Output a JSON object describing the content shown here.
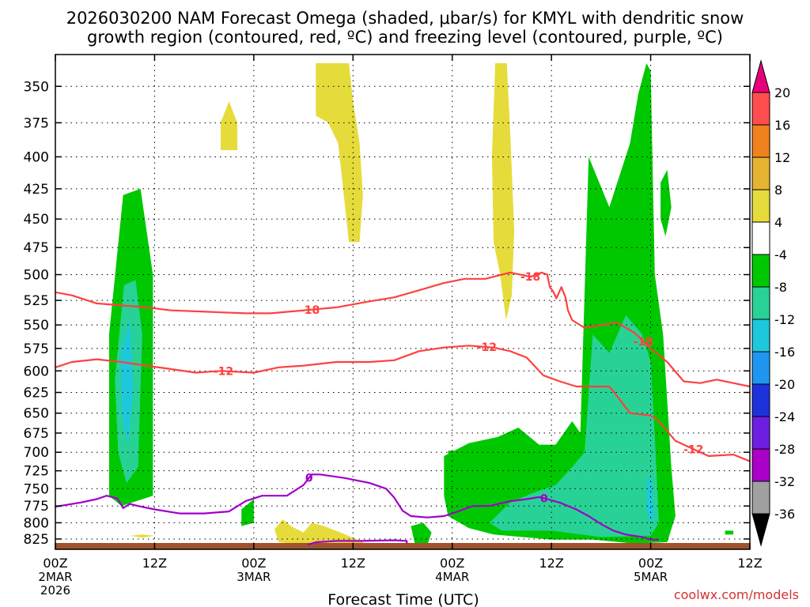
{
  "chart_data": {
    "type": "heatmap",
    "title_line1": "2026030200 NAM Forecast Omega (shaded, μbar/s) for KMYL with dendritic snow",
    "title_line2": "growth region (contoured, red, ºC) and freezing level (contoured, purple, ºC)",
    "xlabel": "Forecast Time (UTC)",
    "ylabel": "",
    "watermark": "coolwx.com/models",
    "y_scale": "log",
    "y_reversed": true,
    "ylim": [
      335,
      840
    ],
    "xlim": [
      0,
      84
    ],
    "grid": true,
    "y_ticks": [
      350,
      375,
      400,
      425,
      450,
      475,
      500,
      525,
      550,
      575,
      600,
      625,
      650,
      675,
      700,
      725,
      750,
      775,
      800,
      825
    ],
    "x_ticks": [
      {
        "x": 0,
        "label": "00Z",
        "date": "2MAR",
        "year": "2026"
      },
      {
        "x": 12,
        "label": "12Z",
        "date": "",
        "year": ""
      },
      {
        "x": 24,
        "label": "00Z",
        "date": "3MAR",
        "year": ""
      },
      {
        "x": 36,
        "label": "12Z",
        "date": "",
        "year": ""
      },
      {
        "x": 48,
        "label": "00Z",
        "date": "4MAR",
        "year": ""
      },
      {
        "x": 60,
        "label": "12Z",
        "date": "",
        "year": ""
      },
      {
        "x": 72,
        "label": "00Z",
        "date": "5MAR",
        "year": ""
      },
      {
        "x": 84,
        "label": "12Z",
        "date": "",
        "year": ""
      }
    ],
    "colorbar": {
      "labels": [
        "20",
        "16",
        "12",
        "8",
        "4",
        "-4",
        "-8",
        "-12",
        "-16",
        "-20",
        "-24",
        "-28",
        "-32",
        "-36"
      ],
      "colors": [
        "#e8007a",
        "#ff4d4d",
        "#f0821e",
        "#e6b432",
        "#e5dc3c",
        "#ffffff",
        "#00c800",
        "#28d296",
        "#1ec8dc",
        "#1e96f0",
        "#1e32dc",
        "#6e1ee1",
        "#aa00c8",
        "#a0a0a0",
        "#000000"
      ]
    },
    "shaded_regions": [
      {
        "level": "-4 to -8",
        "color": "#00c800",
        "points": [
          [
            6.5,
            560
          ],
          [
            8.2,
            430
          ],
          [
            10.3,
            425
          ],
          [
            11.8,
            500
          ],
          [
            11.8,
            760
          ],
          [
            8.0,
            775
          ],
          [
            6.5,
            760
          ]
        ]
      },
      {
        "level": "-8 to -12",
        "color": "#28d296",
        "points": [
          [
            7.2,
            610
          ],
          [
            8.3,
            510
          ],
          [
            9.7,
            505
          ],
          [
            10.5,
            560
          ],
          [
            10.0,
            720
          ],
          [
            8.6,
            742
          ],
          [
            7.6,
            700
          ]
        ]
      },
      {
        "level": "-12 to -16",
        "color": "#1ec8dc",
        "points": [
          [
            7.9,
            580
          ],
          [
            9.0,
            545
          ],
          [
            9.4,
            620
          ],
          [
            8.8,
            690
          ],
          [
            8.0,
            650
          ]
        ]
      },
      {
        "level": "-4 to -8",
        "color": "#00c800",
        "points": [
          [
            22.5,
            780
          ],
          [
            24.0,
            765
          ],
          [
            24.0,
            800
          ],
          [
            22.5,
            805
          ]
        ]
      },
      {
        "level": "-4 to -8",
        "color": "#00c800",
        "points": [
          [
            47.0,
            705
          ],
          [
            50.0,
            688
          ],
          [
            53.5,
            680
          ],
          [
            56.0,
            668
          ],
          [
            58.5,
            690
          ],
          [
            60.5,
            690
          ],
          [
            62.5,
            660
          ],
          [
            63.5,
            675
          ],
          [
            64.5,
            400
          ],
          [
            67.0,
            440
          ],
          [
            69.5,
            390
          ],
          [
            70.5,
            355
          ],
          [
            71.5,
            335
          ],
          [
            72.0,
            340
          ],
          [
            72.5,
            500
          ],
          [
            73.5,
            560
          ],
          [
            74.5,
            720
          ],
          [
            75.0,
            790
          ],
          [
            74.0,
            830
          ],
          [
            70.0,
            832
          ],
          [
            65.0,
            826
          ],
          [
            60.0,
            826
          ],
          [
            53.0,
            818
          ],
          [
            50.0,
            808
          ],
          [
            47.5,
            790
          ],
          [
            47.0,
            760
          ]
        ]
      },
      {
        "level": "-4 to -8",
        "color": "#00c800",
        "points": [
          [
            43.0,
            805
          ],
          [
            44.5,
            800
          ],
          [
            45.5,
            815
          ],
          [
            45.0,
            834
          ],
          [
            43.5,
            834
          ]
        ]
      },
      {
        "level": "-4 to -8",
        "color": "#00c800",
        "points": [
          [
            47.5,
            698
          ],
          [
            48.5,
            698
          ],
          [
            48.5,
            725
          ],
          [
            47.5,
            725
          ]
        ]
      },
      {
        "level": "-4 to -8",
        "color": "#00c800",
        "points": [
          [
            73.2,
            420
          ],
          [
            74.0,
            410
          ],
          [
            74.5,
            440
          ],
          [
            73.8,
            465
          ],
          [
            73.2,
            450
          ]
        ]
      },
      {
        "level": "-4 to -8",
        "color": "#00c800",
        "points": [
          [
            81.0,
            812
          ],
          [
            82.0,
            812
          ],
          [
            82.0,
            818
          ],
          [
            81.0,
            818
          ]
        ]
      },
      {
        "level": "-8 to -12",
        "color": "#28d296",
        "points": [
          [
            52.5,
            800
          ],
          [
            55.0,
            770
          ],
          [
            58.0,
            755
          ],
          [
            60.5,
            745
          ],
          [
            62.5,
            720
          ],
          [
            64.0,
            700
          ],
          [
            65.0,
            560
          ],
          [
            67.0,
            580
          ],
          [
            69.0,
            540
          ],
          [
            71.0,
            560
          ],
          [
            72.0,
            590
          ],
          [
            72.5,
            680
          ],
          [
            73.0,
            800
          ],
          [
            72.0,
            820
          ],
          [
            66.0,
            822
          ],
          [
            60.0,
            812
          ],
          [
            54.0,
            812
          ]
        ]
      },
      {
        "level": "-12 to -16",
        "color": "#1ec8dc",
        "points": [
          [
            71.5,
            740
          ],
          [
            72.0,
            730
          ],
          [
            72.5,
            790
          ],
          [
            72.0,
            800
          ],
          [
            71.5,
            780
          ]
        ]
      },
      {
        "level": "4 to 8",
        "color": "#e5dc3c",
        "points": [
          [
            31.5,
            335
          ],
          [
            35.5,
            335
          ],
          [
            36.0,
            360
          ],
          [
            36.8,
            390
          ],
          [
            37.2,
            430
          ],
          [
            36.8,
            470
          ],
          [
            35.5,
            470
          ],
          [
            34.2,
            390
          ],
          [
            33.0,
            375
          ],
          [
            31.5,
            370
          ]
        ]
      },
      {
        "level": "4 to 8",
        "color": "#e5dc3c",
        "points": [
          [
            20.0,
            375
          ],
          [
            21.0,
            360
          ],
          [
            22.0,
            375
          ],
          [
            22.0,
            395
          ],
          [
            20.0,
            395
          ]
        ]
      },
      {
        "level": "4 to 8",
        "color": "#e5dc3c",
        "points": [
          [
            53.2,
            335
          ],
          [
            54.6,
            335
          ],
          [
            55.0,
            380
          ],
          [
            55.5,
            460
          ],
          [
            55.2,
            520
          ],
          [
            54.5,
            545
          ],
          [
            53.8,
            500
          ],
          [
            53.0,
            470
          ],
          [
            52.8,
            400
          ]
        ]
      },
      {
        "level": "4 to 8",
        "color": "#e5dc3c",
        "points": [
          [
            26.5,
            810
          ],
          [
            27.5,
            795
          ],
          [
            28.5,
            805
          ],
          [
            30.0,
            815
          ],
          [
            31.0,
            800
          ],
          [
            32.5,
            805
          ],
          [
            34.5,
            815
          ],
          [
            36.5,
            826
          ],
          [
            37.5,
            832
          ],
          [
            34.0,
            834
          ],
          [
            30.0,
            834
          ],
          [
            27.0,
            830
          ]
        ]
      },
      {
        "level": "4 to 8",
        "color": "#e5dc3c",
        "points": [
          [
            9.0,
            820
          ],
          [
            10.5,
            818
          ],
          [
            12.0,
            820
          ],
          [
            10.5,
            823
          ]
        ]
      }
    ],
    "contours_dgz": [
      {
        "label": "-18",
        "color": "#ff4040",
        "points": [
          [
            0,
            517
          ],
          [
            2,
            520
          ],
          [
            5,
            528
          ],
          [
            8,
            530
          ],
          [
            11,
            532
          ],
          [
            14,
            535
          ],
          [
            17,
            536
          ],
          [
            20,
            537
          ],
          [
            23,
            538
          ],
          [
            26,
            538
          ],
          [
            30,
            535
          ],
          [
            34,
            532
          ],
          [
            38,
            526
          ],
          [
            41,
            522
          ],
          [
            44,
            515
          ],
          [
            47,
            508
          ],
          [
            49.5,
            504
          ],
          [
            52,
            504
          ],
          [
            55,
            498
          ],
          [
            57.5,
            502
          ],
          [
            58.8,
            498
          ],
          [
            59.5,
            500
          ],
          [
            59.8,
            512
          ],
          [
            60.2,
            516
          ],
          [
            60.6,
            523
          ],
          [
            61.2,
            512
          ],
          [
            61.7,
            522
          ],
          [
            62.0,
            535
          ],
          [
            62.5,
            545
          ],
          [
            64,
            553
          ],
          [
            66,
            550
          ],
          [
            68,
            548
          ],
          [
            70,
            558
          ],
          [
            72,
            575
          ],
          [
            74,
            590
          ],
          [
            76,
            612
          ],
          [
            78,
            614
          ],
          [
            80,
            610
          ],
          [
            82,
            614
          ],
          [
            84,
            618
          ]
        ]
      },
      {
        "label": "-12",
        "color": "#ff4040",
        "points": [
          [
            0,
            596
          ],
          [
            2,
            590
          ],
          [
            5,
            587
          ],
          [
            8,
            590
          ],
          [
            11,
            594
          ],
          [
            14,
            598
          ],
          [
            17,
            602
          ],
          [
            20,
            600
          ],
          [
            24,
            602
          ],
          [
            27,
            596
          ],
          [
            30,
            594
          ],
          [
            34,
            590
          ],
          [
            38,
            590
          ],
          [
            41,
            588
          ],
          [
            44,
            578
          ],
          [
            47,
            574
          ],
          [
            50,
            572
          ],
          [
            53,
            574
          ],
          [
            55,
            578
          ],
          [
            57,
            585
          ],
          [
            59,
            605
          ],
          [
            61,
            612
          ],
          [
            63,
            618
          ],
          [
            65,
            618
          ],
          [
            67,
            618
          ],
          [
            68,
            630
          ],
          [
            69.5,
            650
          ],
          [
            72,
            653
          ],
          [
            73,
            660
          ],
          [
            75,
            685
          ],
          [
            77,
            695
          ],
          [
            79,
            705
          ],
          [
            82,
            703
          ],
          [
            84,
            712
          ]
        ]
      }
    ],
    "contours_freezing": [
      {
        "label": "0",
        "color": "#a000c8",
        "points": [
          [
            0,
            776
          ],
          [
            3,
            770
          ],
          [
            5,
            765
          ],
          [
            6.2,
            760
          ],
          [
            7.5,
            764
          ],
          [
            8.2,
            778
          ],
          [
            9,
            772
          ],
          [
            10,
            775
          ],
          [
            12,
            780
          ],
          [
            15,
            786
          ],
          [
            18,
            786
          ],
          [
            21,
            783
          ],
          [
            23,
            768
          ],
          [
            25,
            760
          ],
          [
            28,
            760
          ],
          [
            30,
            745
          ],
          [
            31,
            730
          ],
          [
            32,
            730
          ],
          [
            35,
            735
          ],
          [
            38,
            742
          ],
          [
            40,
            750
          ],
          [
            41,
            763
          ],
          [
            42,
            782
          ],
          [
            43,
            790
          ],
          [
            45,
            792
          ],
          [
            47,
            790
          ],
          [
            48.5,
            784
          ],
          [
            50.5,
            775
          ],
          [
            52.5,
            775
          ],
          [
            55,
            768
          ],
          [
            57,
            765
          ],
          [
            58.5,
            762
          ],
          [
            59.5,
            765
          ],
          [
            61,
            770
          ],
          [
            63,
            780
          ],
          [
            64.5,
            790
          ],
          [
            66,
            802
          ],
          [
            67.5,
            812
          ],
          [
            69,
            818
          ],
          [
            71,
            822
          ],
          [
            72,
            826
          ],
          [
            73,
            826
          ]
        ]
      },
      {
        "label": "",
        "color": "#a000c8",
        "points": [
          [
            30.5,
            834
          ],
          [
            31.5,
            830
          ],
          [
            34,
            828
          ],
          [
            37,
            828
          ],
          [
            41,
            827
          ],
          [
            42.5,
            828
          ],
          [
            42.5,
            832
          ]
        ]
      }
    ],
    "ground_color": "#a0522d",
    "contour_labels": [
      "-18",
      "-18",
      "-18",
      "-12",
      "-12",
      "-12",
      "0",
      "0"
    ]
  }
}
